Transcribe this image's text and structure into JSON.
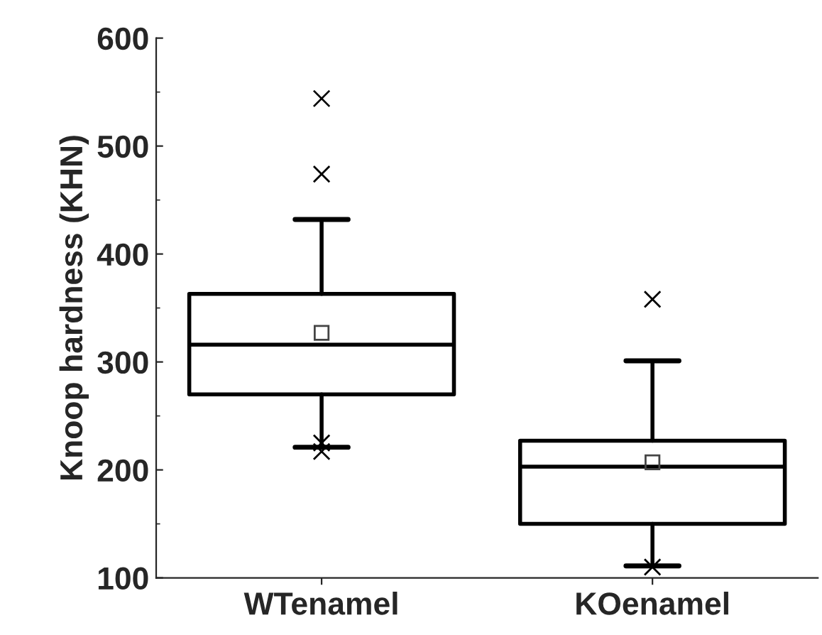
{
  "chart_data": {
    "type": "box",
    "ylabel": "Knoop hardness (KHN)",
    "categories": [
      "WTenamel",
      "KOenamel"
    ],
    "boxes": [
      {
        "low": 221,
        "q1": 270,
        "median": 316,
        "q3": 363,
        "high": 432,
        "mean": 327,
        "outliers": [
          474,
          544,
          225,
          217
        ]
      },
      {
        "low": 111,
        "q1": 150,
        "median": 203,
        "q3": 227,
        "high": 301,
        "mean": 207,
        "outliers": [
          358,
          110
        ]
      }
    ],
    "ylim": [
      100,
      600
    ],
    "yticks": [
      100,
      200,
      300,
      400,
      500,
      600
    ],
    "grid": false,
    "legend": false
  }
}
